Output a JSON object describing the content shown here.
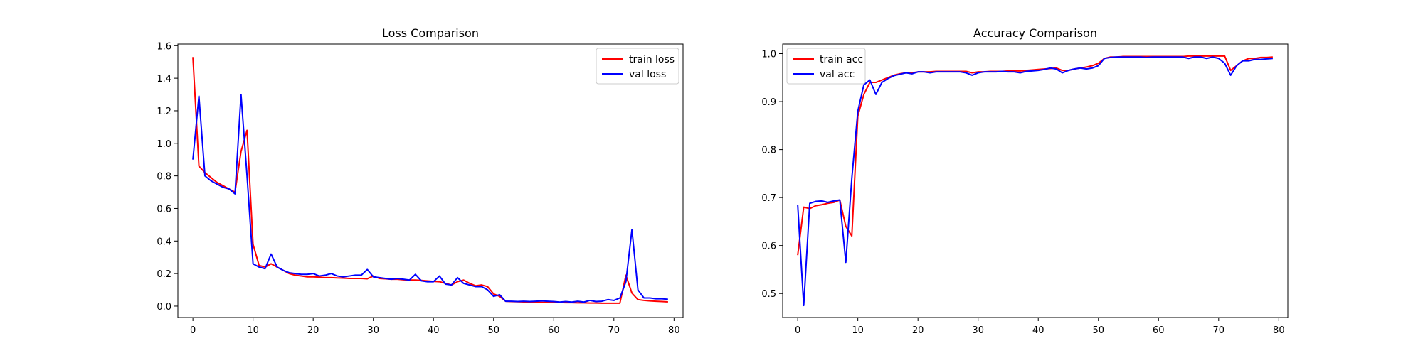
{
  "chart_data": [
    {
      "type": "line",
      "title": "Loss Comparison",
      "xlabel": "",
      "ylabel": "",
      "xlim": [
        -2.5,
        81.5
      ],
      "ylim": [
        -0.07,
        1.61
      ],
      "xticks": [
        0,
        10,
        20,
        30,
        40,
        50,
        60,
        70,
        80
      ],
      "yticks": [
        0.0,
        0.2,
        0.4,
        0.6,
        0.8,
        1.0,
        1.2,
        1.4,
        1.6
      ],
      "ytick_decimals": 1,
      "grid": false,
      "legend": "top-right",
      "x": [
        0,
        1,
        2,
        3,
        4,
        5,
        6,
        7,
        8,
        9,
        10,
        11,
        12,
        13,
        14,
        15,
        16,
        17,
        18,
        19,
        20,
        21,
        22,
        23,
        24,
        25,
        26,
        27,
        28,
        29,
        30,
        31,
        32,
        33,
        34,
        35,
        36,
        37,
        38,
        39,
        40,
        41,
        42,
        43,
        44,
        45,
        46,
        47,
        48,
        49,
        50,
        51,
        52,
        53,
        54,
        55,
        56,
        57,
        58,
        59,
        60,
        61,
        62,
        63,
        64,
        65,
        66,
        67,
        68,
        69,
        70,
        71,
        72,
        73,
        74,
        75,
        76,
        77,
        78,
        79
      ],
      "series": [
        {
          "name": "train loss",
          "color": "#ff0000",
          "values": [
            1.53,
            0.86,
            0.82,
            0.79,
            0.76,
            0.74,
            0.72,
            0.7,
            0.95,
            1.08,
            0.38,
            0.25,
            0.24,
            0.26,
            0.24,
            0.22,
            0.2,
            0.19,
            0.185,
            0.18,
            0.18,
            0.178,
            0.175,
            0.175,
            0.173,
            0.172,
            0.17,
            0.17,
            0.17,
            0.168,
            0.185,
            0.17,
            0.168,
            0.165,
            0.165,
            0.162,
            0.16,
            0.16,
            0.158,
            0.155,
            0.152,
            0.15,
            0.14,
            0.13,
            0.15,
            0.16,
            0.14,
            0.125,
            0.13,
            0.12,
            0.075,
            0.06,
            0.03,
            0.028,
            0.027,
            0.026,
            0.025,
            0.024,
            0.023,
            0.023,
            0.022,
            0.022,
            0.021,
            0.021,
            0.02,
            0.02,
            0.019,
            0.019,
            0.018,
            0.018,
            0.018,
            0.018,
            0.19,
            0.08,
            0.04,
            0.035,
            0.032,
            0.03,
            0.028,
            0.026
          ]
        },
        {
          "name": "val loss",
          "color": "#0000ff",
          "values": [
            0.9,
            1.29,
            0.8,
            0.77,
            0.75,
            0.73,
            0.72,
            0.69,
            1.3,
            0.8,
            0.26,
            0.24,
            0.23,
            0.32,
            0.24,
            0.22,
            0.205,
            0.2,
            0.195,
            0.195,
            0.2,
            0.185,
            0.19,
            0.2,
            0.185,
            0.18,
            0.185,
            0.19,
            0.19,
            0.225,
            0.18,
            0.175,
            0.17,
            0.165,
            0.17,
            0.165,
            0.16,
            0.195,
            0.155,
            0.15,
            0.15,
            0.185,
            0.135,
            0.13,
            0.175,
            0.14,
            0.13,
            0.12,
            0.12,
            0.1,
            0.06,
            0.07,
            0.03,
            0.03,
            0.028,
            0.03,
            0.028,
            0.03,
            0.032,
            0.03,
            0.028,
            0.025,
            0.028,
            0.025,
            0.03,
            0.025,
            0.035,
            0.028,
            0.03,
            0.04,
            0.035,
            0.05,
            0.15,
            0.47,
            0.1,
            0.05,
            0.05,
            0.045,
            0.045,
            0.042
          ]
        }
      ]
    },
    {
      "type": "line",
      "title": "Accuracy Comparison",
      "xlabel": "",
      "ylabel": "",
      "xlim": [
        -2.5,
        81.5
      ],
      "ylim": [
        0.45,
        1.02
      ],
      "xticks": [
        0,
        10,
        20,
        30,
        40,
        50,
        60,
        70,
        80
      ],
      "yticks": [
        0.5,
        0.6,
        0.7,
        0.8,
        0.9,
        1.0
      ],
      "ytick_decimals": 1,
      "grid": false,
      "legend": "top-left",
      "x": [
        0,
        1,
        2,
        3,
        4,
        5,
        6,
        7,
        8,
        9,
        10,
        11,
        12,
        13,
        14,
        15,
        16,
        17,
        18,
        19,
        20,
        21,
        22,
        23,
        24,
        25,
        26,
        27,
        28,
        29,
        30,
        31,
        32,
        33,
        34,
        35,
        36,
        37,
        38,
        39,
        40,
        41,
        42,
        43,
        44,
        45,
        46,
        47,
        48,
        49,
        50,
        51,
        52,
        53,
        54,
        55,
        56,
        57,
        58,
        59,
        60,
        61,
        62,
        63,
        64,
        65,
        66,
        67,
        68,
        69,
        70,
        71,
        72,
        73,
        74,
        75,
        76,
        77,
        78,
        79
      ],
      "series": [
        {
          "name": "train acc",
          "color": "#ff0000",
          "values": [
            0.58,
            0.68,
            0.677,
            0.683,
            0.685,
            0.688,
            0.69,
            0.695,
            0.64,
            0.62,
            0.87,
            0.915,
            0.94,
            0.94,
            0.945,
            0.95,
            0.955,
            0.958,
            0.96,
            0.96,
            0.962,
            0.962,
            0.962,
            0.963,
            0.963,
            0.963,
            0.963,
            0.963,
            0.963,
            0.96,
            0.962,
            0.962,
            0.963,
            0.963,
            0.963,
            0.964,
            0.964,
            0.964,
            0.965,
            0.966,
            0.967,
            0.968,
            0.969,
            0.97,
            0.965,
            0.965,
            0.968,
            0.97,
            0.972,
            0.975,
            0.98,
            0.99,
            0.993,
            0.993,
            0.994,
            0.994,
            0.994,
            0.994,
            0.994,
            0.994,
            0.994,
            0.994,
            0.994,
            0.994,
            0.994,
            0.995,
            0.995,
            0.995,
            0.995,
            0.995,
            0.995,
            0.995,
            0.965,
            0.975,
            0.985,
            0.99,
            0.99,
            0.992,
            0.992,
            0.993
          ]
        },
        {
          "name": "val acc",
          "color": "#0000ff",
          "values": [
            0.685,
            0.475,
            0.688,
            0.692,
            0.693,
            0.69,
            0.693,
            0.695,
            0.565,
            0.74,
            0.88,
            0.935,
            0.945,
            0.915,
            0.94,
            0.948,
            0.954,
            0.957,
            0.96,
            0.958,
            0.962,
            0.962,
            0.96,
            0.962,
            0.962,
            0.962,
            0.962,
            0.962,
            0.96,
            0.955,
            0.96,
            0.962,
            0.962,
            0.962,
            0.963,
            0.962,
            0.962,
            0.96,
            0.963,
            0.964,
            0.965,
            0.967,
            0.97,
            0.968,
            0.96,
            0.965,
            0.968,
            0.97,
            0.968,
            0.97,
            0.975,
            0.99,
            0.992,
            0.993,
            0.993,
            0.993,
            0.993,
            0.993,
            0.992,
            0.993,
            0.993,
            0.993,
            0.993,
            0.993,
            0.993,
            0.99,
            0.993,
            0.993,
            0.99,
            0.993,
            0.99,
            0.98,
            0.955,
            0.975,
            0.985,
            0.985,
            0.988,
            0.988,
            0.989,
            0.99
          ]
        }
      ]
    }
  ]
}
